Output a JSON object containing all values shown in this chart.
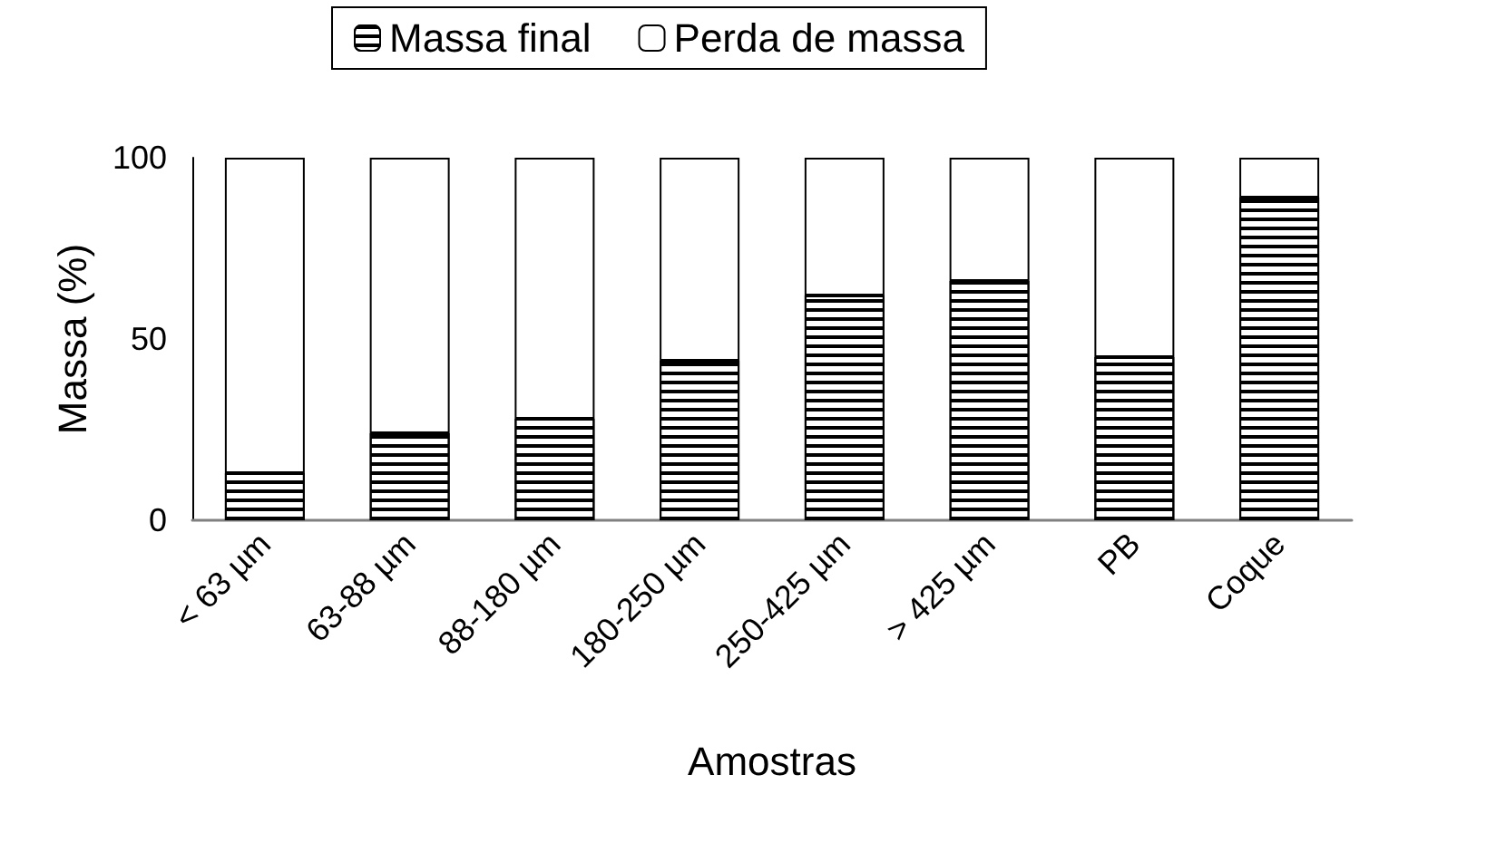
{
  "chart_data": {
    "type": "bar",
    "stacked": true,
    "xlabel": "Amostras",
    "ylabel": "Massa (%)",
    "categories": [
      "< 63 µm",
      "63-88 µm",
      "88-180 µm",
      "180-250 µm",
      "250-425 µm",
      "> 425 µm",
      "PB",
      "Coque"
    ],
    "series": [
      {
        "name": "Massa final",
        "color": "#000000",
        "values": [
          13,
          24,
          28,
          44,
          62,
          66,
          45,
          89
        ]
      },
      {
        "name": "Perda de massa",
        "color": "#ffffff",
        "values": [
          87,
          76,
          72,
          56,
          38,
          34,
          55,
          11
        ]
      }
    ],
    "ylim": [
      0,
      100
    ],
    "yticks": [
      0,
      50,
      100
    ],
    "grid": false,
    "legend": "top"
  }
}
